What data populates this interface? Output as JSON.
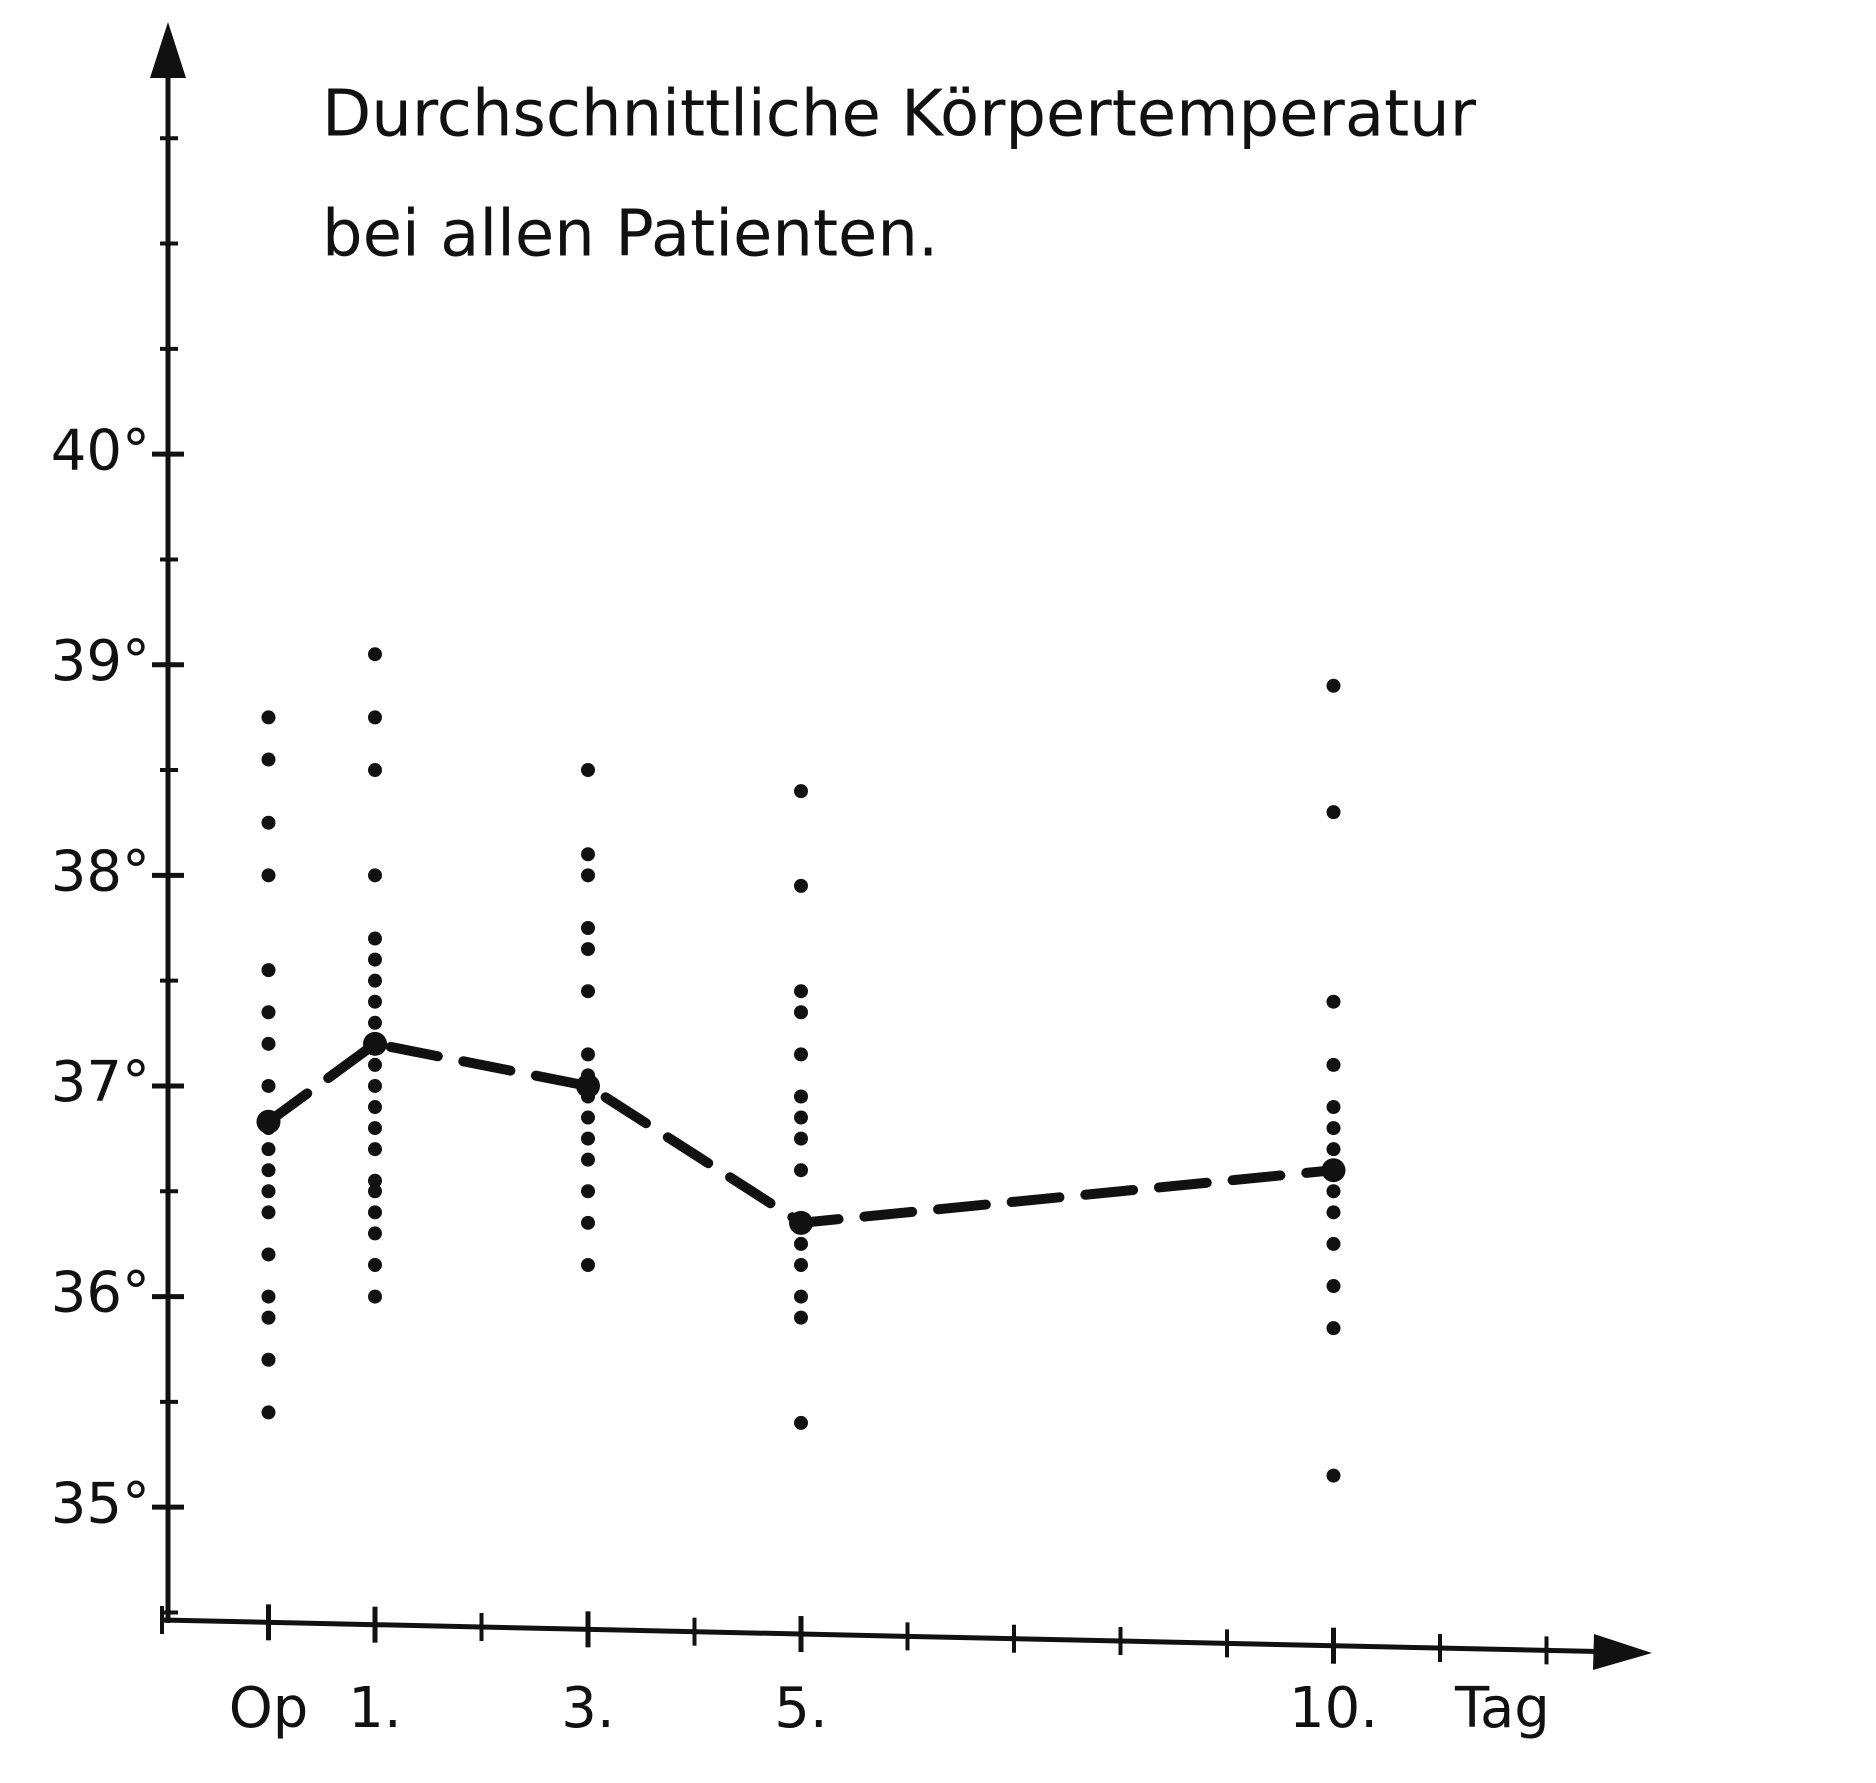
{
  "chart_data": {
    "type": "scatter",
    "title": [
      "Durchschnittliche Körpertemperatur",
      "bei allen Patienten."
    ],
    "x_label": "Tag",
    "xlim": [
      -1,
      13
    ],
    "ylim": [
      34.45,
      41.9
    ],
    "xticks": [
      {
        "value": 0,
        "label": "Op"
      },
      {
        "value": 1,
        "label": "1."
      },
      {
        "value": 3,
        "label": "3."
      },
      {
        "value": 5,
        "label": "5."
      },
      {
        "value": 10,
        "label": "10."
      }
    ],
    "xminorticks": [
      -1,
      0,
      1,
      2,
      3,
      4,
      5,
      6,
      7,
      8,
      9,
      10,
      11,
      12
    ],
    "yticks": [
      {
        "value": 35,
        "label": "35°"
      },
      {
        "value": 36,
        "label": "36°"
      },
      {
        "value": 37,
        "label": "37°"
      },
      {
        "value": 38,
        "label": "38°"
      },
      {
        "value": 39,
        "label": "39°"
      },
      {
        "value": 40,
        "label": "40°"
      }
    ],
    "yminorticks": [
      34.5,
      35,
      35.5,
      36,
      36.5,
      37,
      37.5,
      38,
      38.5,
      39,
      39.5,
      40,
      40.5,
      41,
      41.5
    ],
    "series": [
      {
        "type": "scatter",
        "color": "#111111",
        "x": [
          0,
          0,
          0,
          0,
          0,
          0,
          0,
          0,
          0,
          0,
          0,
          0,
          0,
          0,
          0,
          0,
          0,
          0,
          1,
          1,
          1,
          1,
          1,
          1,
          1,
          1,
          1,
          1,
          1,
          1,
          1,
          1,
          1,
          1,
          1,
          1,
          1,
          1,
          1,
          3,
          3,
          3,
          3,
          3,
          3,
          3,
          3,
          3,
          3,
          3,
          3,
          3,
          3,
          3,
          5,
          5,
          5,
          5,
          5,
          5,
          5,
          5,
          5,
          5,
          5,
          5,
          5,
          5,
          10,
          10,
          10,
          10,
          10,
          10,
          10,
          10,
          10,
          10,
          10,
          10,
          10,
          10
        ],
        "values": [
          38.75,
          38.55,
          38.25,
          38.0,
          37.55,
          37.35,
          37.2,
          37.0,
          36.8,
          36.7,
          36.6,
          36.5,
          36.4,
          36.2,
          36.0,
          35.9,
          35.7,
          35.45,
          39.05,
          38.75,
          38.5,
          38.0,
          37.7,
          37.6,
          37.5,
          37.4,
          37.3,
          37.2,
          37.1,
          37.0,
          36.9,
          36.8,
          36.7,
          36.55,
          36.5,
          36.4,
          36.3,
          36.15,
          36.0,
          38.5,
          38.1,
          38.0,
          37.75,
          37.65,
          37.45,
          37.15,
          37.05,
          36.95,
          36.85,
          36.75,
          36.65,
          36.5,
          36.35,
          36.15,
          38.4,
          37.95,
          37.45,
          37.35,
          37.15,
          36.95,
          36.85,
          36.75,
          36.6,
          36.25,
          36.15,
          36.0,
          35.9,
          35.4,
          38.9,
          38.3,
          37.4,
          37.1,
          36.9,
          36.8,
          36.7,
          36.6,
          36.5,
          36.4,
          36.25,
          36.05,
          35.85,
          35.15
        ]
      },
      {
        "type": "line",
        "color": "#111111",
        "dashed": true,
        "x": [
          0,
          1,
          3,
          5,
          10
        ],
        "values": [
          36.83,
          37.2,
          37.0,
          36.35,
          36.6
        ]
      }
    ]
  }
}
